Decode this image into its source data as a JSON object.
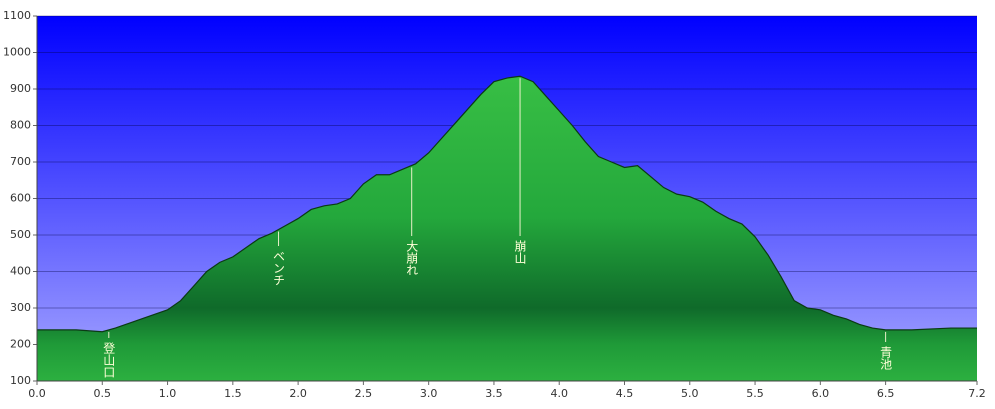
{
  "chart_data": {
    "type": "area",
    "x": [
      0,
      0.3,
      0.5,
      0.6,
      0.8,
      1.0,
      1.1,
      1.2,
      1.3,
      1.4,
      1.5,
      1.6,
      1.7,
      1.8,
      1.9,
      2.0,
      2.1,
      2.2,
      2.3,
      2.4,
      2.5,
      2.6,
      2.7,
      2.8,
      2.9,
      3.0,
      3.1,
      3.2,
      3.3,
      3.4,
      3.5,
      3.6,
      3.7,
      3.8,
      3.9,
      4.0,
      4.1,
      4.2,
      4.3,
      4.4,
      4.5,
      4.6,
      4.7,
      4.8,
      4.9,
      5.0,
      5.1,
      5.2,
      5.3,
      5.4,
      5.5,
      5.6,
      5.7,
      5.8,
      5.9,
      6.0,
      6.1,
      6.2,
      6.3,
      6.4,
      6.5,
      6.7,
      7.0,
      7.2
    ],
    "values": [
      240,
      240,
      235,
      245,
      270,
      295,
      320,
      360,
      400,
      425,
      440,
      465,
      490,
      505,
      525,
      545,
      570,
      580,
      585,
      600,
      640,
      665,
      665,
      680,
      695,
      725,
      765,
      805,
      845,
      885,
      920,
      930,
      935,
      920,
      880,
      840,
      800,
      755,
      715,
      700,
      685,
      690,
      660,
      630,
      612,
      605,
      590,
      565,
      545,
      530,
      495,
      445,
      385,
      320,
      300,
      295,
      280,
      270,
      255,
      245,
      240,
      240,
      245,
      245
    ],
    "color": "#22a83c",
    "xlim": [
      0,
      7.2
    ],
    "ylim": [
      100,
      1100
    ],
    "xticks": [
      {
        "value": 0,
        "label": "0.0"
      },
      0.5,
      {
        "value": 1,
        "label": "1.0"
      },
      1.5,
      {
        "value": 2,
        "label": "2.0"
      },
      2.5,
      {
        "value": 3,
        "label": "3.0"
      },
      3.5,
      {
        "value": 4,
        "label": "4.0"
      },
      4.5,
      {
        "value": 5,
        "label": "5.0"
      },
      5.5,
      {
        "value": 6,
        "label": "6.0"
      },
      6.5,
      {
        "value": 7.2,
        "label": "7.2"
      }
    ],
    "yticks": [
      100,
      200,
      300,
      400,
      500,
      600,
      700,
      800,
      900,
      1000,
      1100
    ],
    "grid": true,
    "annotations": [
      {
        "text": "登山口",
        "x": 0.55
      },
      {
        "text": "ベンチ",
        "x": 1.85
      },
      {
        "text": "大崩れ",
        "x": 2.87
      },
      {
        "text": "崩山",
        "x": 3.7
      },
      {
        "text": "青池",
        "x": 6.5
      }
    ]
  }
}
